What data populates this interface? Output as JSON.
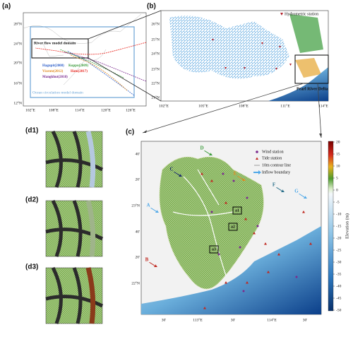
{
  "panel_a": {
    "label": "(a)",
    "lat_labels": [
      "28°N",
      "24°N",
      "20°N",
      "16°N",
      "12°N"
    ],
    "lon_labels": [
      "102°E",
      "108°E",
      "114°E",
      "120°E",
      "126°E"
    ],
    "river_domain": "River flow model domain",
    "ocean_domain": "Ocean circulation model domain",
    "typhoons": [
      "Hagupit(2008)",
      "Koppu(2009)",
      "Vicente(2012)",
      "Hato(2017)",
      "Mangkhut(2018)"
    ]
  },
  "panel_b": {
    "label": "(b)",
    "legend": "Hydrometric station",
    "lat_labels": [
      "26°N",
      "25°N",
      "24°N",
      "23°N",
      "22°N",
      "21°N"
    ],
    "lon_labels": [
      "102°E",
      "105°E",
      "108°E",
      "111°E",
      "114°E"
    ],
    "delta": "Pearl River Delta"
  },
  "panel_c": {
    "label": "(c)",
    "boundaries": [
      "A",
      "B",
      "C",
      "D",
      "E",
      "F",
      "G"
    ],
    "areas": [
      "a1",
      "a2",
      "a3"
    ],
    "legend": [
      "Wind station",
      "Tide station",
      "10m contour line",
      "Inflow boundary"
    ],
    "lat_labels": [
      "40'",
      "20'",
      "23°N",
      "40'",
      "20'",
      "22°N"
    ],
    "lon_labels": [
      "30'",
      "113°E",
      "30'",
      "114°E",
      "30'"
    ],
    "colorbar": {
      "title": "Elevation (m)",
      "ticks": [
        20,
        15,
        10,
        5,
        0,
        -5,
        -10,
        -15,
        -20,
        -25,
        -30,
        -35,
        -40,
        -45,
        -50
      ]
    }
  },
  "panel_d": [
    {
      "label": "(d1)"
    },
    {
      "label": "(d2)"
    },
    {
      "label": "(d3)"
    }
  ]
}
